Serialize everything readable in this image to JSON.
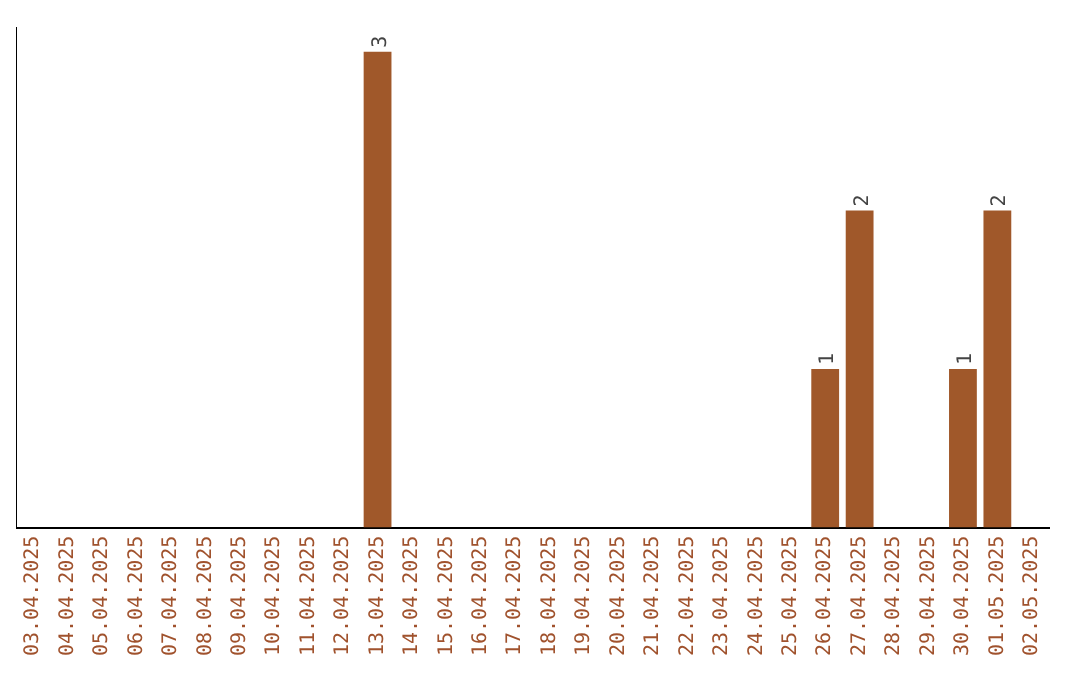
{
  "chart_data": {
    "type": "bar",
    "categories": [
      "03.04.2025",
      "04.04.2025",
      "05.04.2025",
      "06.04.2025",
      "07.04.2025",
      "08.04.2025",
      "09.04.2025",
      "10.04.2025",
      "11.04.2025",
      "12.04.2025",
      "13.04.2025",
      "14.04.2025",
      "15.04.2025",
      "16.04.2025",
      "17.04.2025",
      "18.04.2025",
      "19.04.2025",
      "20.04.2025",
      "21.04.2025",
      "22.04.2025",
      "23.04.2025",
      "24.04.2025",
      "25.04.2025",
      "26.04.2025",
      "27.04.2025",
      "28.04.2025",
      "29.04.2025",
      "30.04.2025",
      "01.05.2025",
      "02.05.2025"
    ],
    "values": [
      0,
      0,
      0,
      0,
      0,
      0,
      0,
      0,
      0,
      0,
      3,
      0,
      0,
      0,
      0,
      0,
      0,
      0,
      0,
      0,
      0,
      0,
      0,
      1,
      2,
      0,
      0,
      1,
      2,
      0
    ],
    "value_labels": [
      null,
      null,
      null,
      null,
      null,
      null,
      null,
      null,
      null,
      null,
      "3",
      null,
      null,
      null,
      null,
      null,
      null,
      null,
      null,
      null,
      null,
      null,
      null,
      "1",
      "2",
      null,
      null,
      "1",
      "2",
      null
    ],
    "color": "#a0582a",
    "ylim": [
      0,
      3.15
    ],
    "tick_labels": "x",
    "grid": false,
    "legend": false
  }
}
